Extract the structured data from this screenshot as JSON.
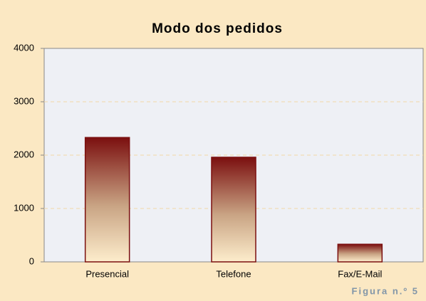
{
  "chart_data": {
    "type": "bar",
    "title": "Modo dos pedidos",
    "categories": [
      "Presencial",
      "Telefone",
      "Fax/E-Mail"
    ],
    "values": [
      2330,
      1960,
      330
    ],
    "color": "#7b0f0f",
    "ylim": [
      0,
      4000
    ],
    "yticks": [
      0,
      1000,
      2000,
      3000,
      4000
    ],
    "grid": true,
    "caption": "Figura n.º 5"
  }
}
